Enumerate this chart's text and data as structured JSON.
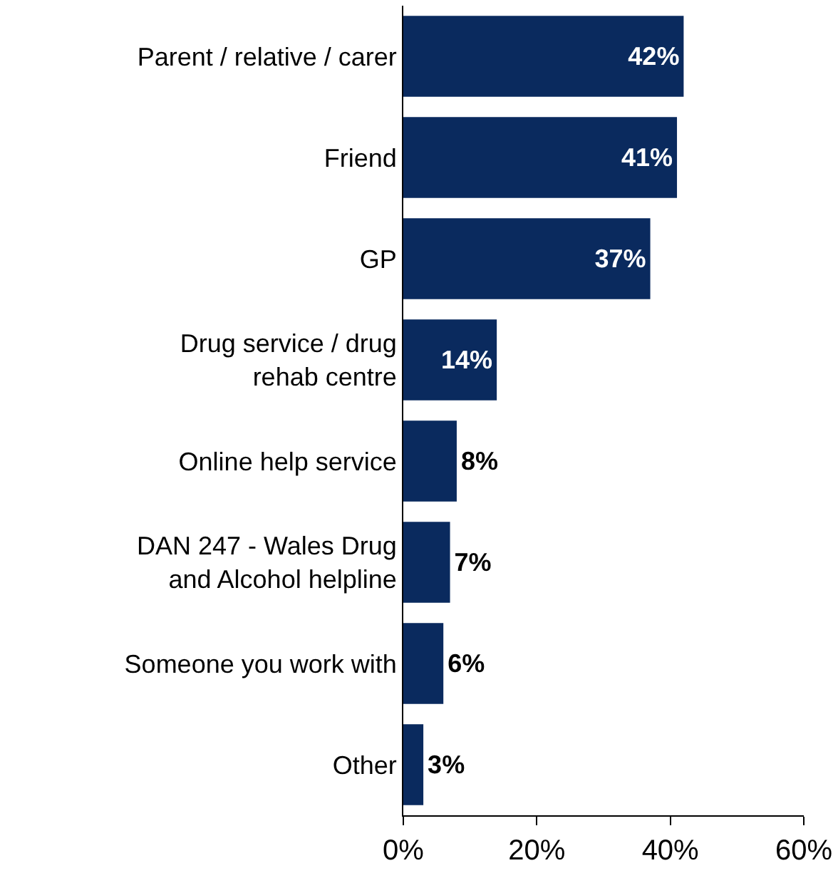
{
  "chart_data": {
    "type": "bar",
    "orientation": "horizontal",
    "categories": [
      "Parent / relative / carer",
      "Friend",
      "GP",
      "Drug service / drug\nrehab centre",
      "Online help service",
      "DAN 247 - Wales Drug\nand Alcohol helpline",
      "Someone you work with",
      "Other"
    ],
    "values": [
      42,
      41,
      37,
      14,
      8,
      7,
      6,
      3
    ],
    "value_labels": [
      "42%",
      "41%",
      "37%",
      "14%",
      "8%",
      "7%",
      "6%",
      "3%"
    ],
    "color": "#0a2a5e",
    "xlim": [
      0,
      60
    ],
    "xticks": [
      {
        "value": 0,
        "label": "0%"
      },
      {
        "value": 20,
        "label": "20%"
      },
      {
        "value": 40,
        "label": "40%"
      },
      {
        "value": 60,
        "label": "60%"
      }
    ],
    "grid": false
  }
}
